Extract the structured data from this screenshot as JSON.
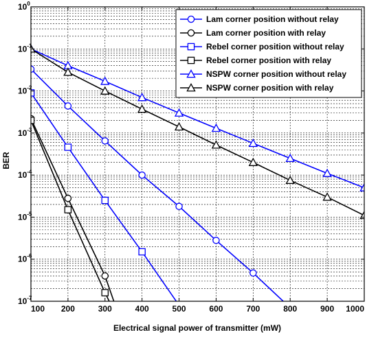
{
  "chart_data": {
    "type": "line",
    "xlabel": "Electrical signal power of transmitter (mW)",
    "ylabel": "BER",
    "xlim": [
      100,
      1000
    ],
    "ylim": [
      1e-07,
      1
    ],
    "yscale": "log",
    "grid": true,
    "legend_position": "top-right",
    "x_ticks": [
      100,
      200,
      300,
      400,
      500,
      600,
      700,
      800,
      900,
      1000
    ],
    "x_tick_labels": [
      "100",
      "200",
      "300",
      "400",
      "500",
      "600",
      "700",
      "800",
      "900",
      "1000"
    ],
    "y_ticks": [
      1e-07,
      1e-06,
      1e-05,
      0.0001,
      0.001,
      0.01,
      0.1,
      1
    ],
    "y_tick_bases": [
      "10",
      "10",
      "10",
      "10",
      "10",
      "10",
      "10",
      "10"
    ],
    "y_tick_exponents": [
      "-7",
      "-6",
      "-5",
      "-4",
      "-3",
      "-2",
      "-1",
      "0"
    ],
    "series": [
      {
        "name": "Lam  corner position without relay",
        "color": "#0000ff",
        "marker": "circle",
        "x": [
          100,
          200,
          300,
          400,
          500,
          600,
          700,
          800
        ],
        "y": [
          0.033,
          0.0044,
          0.00065,
          0.0001,
          1.8e-05,
          2.8e-06,
          4.7e-07,
          7e-08
        ]
      },
      {
        "name": "Lam  corner position with relay",
        "color": "#000000",
        "marker": "circle",
        "x": [
          100,
          200,
          300,
          330
        ],
        "y": [
          0.0022,
          2.8e-05,
          4e-07,
          7e-08
        ]
      },
      {
        "name": "Rebel  corner position without relay",
        "color": "#0000ff",
        "marker": "square",
        "x": [
          100,
          200,
          300,
          400,
          500
        ],
        "y": [
          0.009,
          0.00046,
          2.5e-05,
          1.5e-06,
          8e-08
        ]
      },
      {
        "name": "Rebel  corner position with relay",
        "color": "#000000",
        "marker": "square",
        "x": [
          100,
          200,
          300,
          320
        ],
        "y": [
          0.002,
          1.5e-05,
          1.6e-07,
          7e-08
        ]
      },
      {
        "name": "NSPW  corner position without relay",
        "color": "#0000ff",
        "marker": "triangle",
        "x": [
          100,
          200,
          300,
          400,
          500,
          600,
          700,
          800,
          900,
          1000
        ],
        "y": [
          0.1,
          0.04,
          0.017,
          0.007,
          0.003,
          0.0013,
          0.00057,
          0.00025,
          0.00011,
          5e-05
        ]
      },
      {
        "name": "NSPW  corner position with relay",
        "color": "#000000",
        "marker": "triangle",
        "x": [
          100,
          200,
          300,
          400,
          500,
          600,
          700,
          800,
          900,
          1000
        ],
        "y": [
          0.1,
          0.028,
          0.01,
          0.0037,
          0.0014,
          0.00052,
          0.0002,
          7.5e-05,
          3e-05,
          1.1e-05
        ]
      }
    ]
  }
}
